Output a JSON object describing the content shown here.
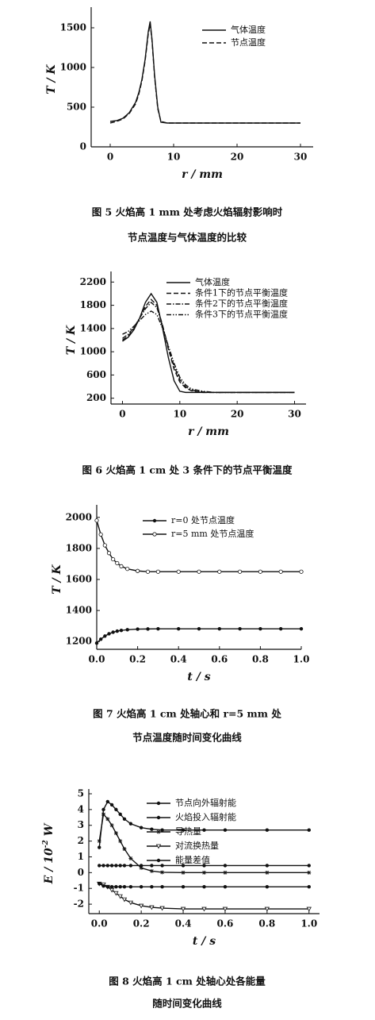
{
  "chart_data": [
    {
      "type": "line",
      "title": [
        "图 5   火焰高 1 mm 处考虑火焰辐射影响时",
        "节点温度与气体温度的比较"
      ],
      "xlabel": "r / mm",
      "ylabel": "T / K",
      "xlim": [
        -3,
        32
      ],
      "ylim": [
        0,
        1700
      ],
      "xticks": [
        0,
        10,
        20,
        30
      ],
      "yticks": [
        0,
        500,
        1000,
        1500
      ],
      "legend": "upper right",
      "x": [
        0,
        1,
        2,
        3,
        4,
        4.5,
        5,
        5.5,
        6,
        6.3,
        6.6,
        7,
        7.5,
        8,
        9,
        10,
        15,
        20,
        25,
        30
      ],
      "series": [
        {
          "name": "气体温度",
          "color": "#111111",
          "linestyle": "solid",
          "marker": "none",
          "values": [
            320,
            330,
            360,
            430,
            560,
            680,
            850,
            1100,
            1450,
            1580,
            1350,
            900,
            500,
            310,
            300,
            300,
            300,
            300,
            300,
            300
          ]
        },
        {
          "name": "节点温度",
          "color": "#111111",
          "linestyle": "dashed",
          "marker": "none",
          "values": [
            300,
            320,
            350,
            420,
            540,
            660,
            830,
            1080,
            1420,
            1550,
            1330,
            880,
            480,
            320,
            300,
            300,
            300,
            300,
            300,
            300
          ]
        }
      ]
    },
    {
      "type": "line",
      "title": [
        "图 6   火焰高 1 cm 处 3 条件下的节点平衡温度"
      ],
      "xlabel": "r / mm",
      "ylabel": "T / K",
      "xlim": [
        -2,
        32
      ],
      "ylim": [
        100,
        2300
      ],
      "xticks": [
        0,
        10,
        20,
        30
      ],
      "yticks": [
        200,
        600,
        1000,
        1400,
        1800,
        2200
      ],
      "legend": "upper right",
      "x": [
        0,
        1,
        2,
        3,
        4,
        5,
        6,
        7,
        8,
        9,
        10,
        11,
        12,
        14,
        16,
        20,
        25,
        30
      ],
      "series": [
        {
          "name": "气体温度",
          "color": "#111111",
          "linestyle": "solid",
          "marker": "none",
          "values": [
            1180,
            1250,
            1380,
            1580,
            1850,
            2000,
            1850,
            1400,
            900,
            500,
            320,
            300,
            300,
            300,
            300,
            300,
            300,
            300
          ]
        },
        {
          "name": "条件1下的节点平衡温度",
          "color": "#111111",
          "linestyle": "dashed",
          "marker": "none",
          "values": [
            1200,
            1270,
            1400,
            1580,
            1780,
            1900,
            1800,
            1450,
            1050,
            700,
            480,
            380,
            330,
            300,
            300,
            300,
            300,
            300
          ]
        },
        {
          "name": "条件2下的节点平衡温度",
          "color": "#111111",
          "linestyle": "dashdot",
          "marker": "none",
          "values": [
            1230,
            1300,
            1420,
            1580,
            1740,
            1850,
            1760,
            1450,
            1080,
            750,
            520,
            400,
            340,
            310,
            300,
            300,
            300,
            300
          ]
        },
        {
          "name": "条件3下的节点平衡温度",
          "color": "#111111",
          "linestyle": "dashdotdot",
          "marker": "none",
          "values": [
            1300,
            1350,
            1440,
            1540,
            1640,
            1700,
            1640,
            1400,
            1100,
            800,
            560,
            430,
            360,
            320,
            300,
            300,
            300,
            300
          ]
        }
      ]
    },
    {
      "type": "line",
      "title": [
        "图 7   火焰高 1 cm 处轴心和 r=5 mm 处",
        "节点温度随时间变化曲线"
      ],
      "xlabel": "t / s",
      "ylabel": "T / K",
      "xlim": [
        0,
        1
      ],
      "ylim": [
        1150,
        2050
      ],
      "xticks": [
        {
          "value": 0,
          "label": "0.0"
        },
        0.2,
        0.4,
        0.6,
        0.8,
        {
          "value": 1,
          "label": "1.0"
        }
      ],
      "yticks": [
        1200,
        1400,
        1600,
        1800,
        2000
      ],
      "legend": "upper right",
      "x": [
        0,
        0.02,
        0.04,
        0.06,
        0.08,
        0.1,
        0.12,
        0.15,
        0.2,
        0.25,
        0.3,
        0.4,
        0.5,
        0.6,
        0.7,
        0.8,
        0.9,
        1
      ],
      "series": [
        {
          "name": "r=0 处节点温度",
          "color": "#111111",
          "linestyle": "solid",
          "marker": "dot",
          "values": [
            1190,
            1215,
            1235,
            1250,
            1260,
            1267,
            1272,
            1276,
            1280,
            1281,
            1282,
            1282,
            1282,
            1282,
            1282,
            1282,
            1282,
            1282
          ]
        },
        {
          "name": "r=5 mm 处节点温度",
          "color": "#111111",
          "linestyle": "solid",
          "marker": "circle",
          "values": [
            1980,
            1890,
            1820,
            1770,
            1730,
            1705,
            1685,
            1668,
            1655,
            1650,
            1650,
            1650,
            1650,
            1650,
            1650,
            1650,
            1650,
            1650
          ]
        }
      ]
    },
    {
      "type": "line",
      "title": [
        "图 8   火焰高 1 cm 处轴心处各能量",
        "随时间变化曲线"
      ],
      "xlabel": "t / s",
      "ylabel": [
        "E / 10",
        "-2",
        " W"
      ],
      "xlim": [
        -0.05,
        1.05
      ],
      "ylim": [
        -2.6,
        5
      ],
      "xticks": [
        {
          "value": 0,
          "label": "0.0"
        },
        0.2,
        0.4,
        0.6,
        0.8,
        {
          "value": 1,
          "label": "1.0"
        }
      ],
      "yticks": [
        -2,
        -1,
        0,
        1,
        2,
        3,
        4,
        5
      ],
      "legend": "upper right",
      "x": [
        0,
        0.02,
        0.04,
        0.06,
        0.08,
        0.1,
        0.12,
        0.15,
        0.2,
        0.25,
        0.3,
        0.4,
        0.5,
        0.6,
        0.8,
        1
      ],
      "series": [
        {
          "name": "节点向外辐射能",
          "color": "#111111",
          "linestyle": "solid",
          "marker": "dot",
          "values": [
            1.6,
            4.0,
            4.5,
            4.3,
            4.0,
            3.7,
            3.4,
            3.1,
            2.85,
            2.75,
            2.7,
            2.7,
            2.7,
            2.7,
            2.7,
            2.7
          ]
        },
        {
          "name": "火焰投入辐射能",
          "color": "#111111",
          "linestyle": "solid",
          "marker": "dot",
          "values": [
            0.45,
            0.45,
            0.45,
            0.45,
            0.45,
            0.45,
            0.45,
            0.45,
            0.45,
            0.45,
            0.45,
            0.45,
            0.45,
            0.45,
            0.45,
            0.45
          ]
        },
        {
          "name": "导热量",
          "color": "#111111",
          "linestyle": "solid",
          "marker": "star",
          "values": [
            2.0,
            3.7,
            3.4,
            3.0,
            2.5,
            2.0,
            1.5,
            0.9,
            0.3,
            0.1,
            0.02,
            0,
            0,
            0,
            0,
            0
          ]
        },
        {
          "name": "对流换热量",
          "color": "#111111",
          "linestyle": "solid",
          "marker": "triangle",
          "values": [
            -0.7,
            -0.75,
            -0.9,
            -1.1,
            -1.3,
            -1.5,
            -1.7,
            -1.9,
            -2.1,
            -2.2,
            -2.25,
            -2.3,
            -2.3,
            -2.3,
            -2.3,
            -2.3
          ]
        },
        {
          "name": "能量差值",
          "color": "#111111",
          "linestyle": "solid",
          "marker": "dot",
          "values": [
            -0.7,
            -0.85,
            -0.9,
            -0.9,
            -0.9,
            -0.9,
            -0.9,
            -0.9,
            -0.9,
            -0.9,
            -0.9,
            -0.9,
            -0.9,
            -0.9,
            -0.9,
            -0.9
          ]
        }
      ]
    }
  ]
}
